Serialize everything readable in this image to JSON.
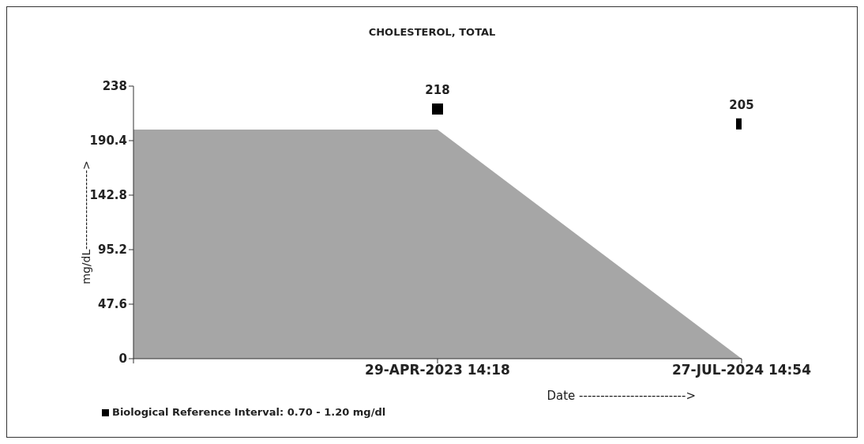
{
  "chart_data": {
    "type": "area",
    "title": "CHOLESTEROL, TOTAL",
    "xlabel": "Date ------------------------->",
    "ylabel": "mg/dL-------------------->",
    "categories": [
      null,
      "29-APR-2023 14:18",
      "27-JUL-2024 14:54"
    ],
    "series": [
      {
        "color": "#a6a6a6",
        "values": [
          200,
          200,
          0
        ]
      },
      {
        "type": "scatter",
        "name": "Biological Reference Interval: 0.70 - 1.20 mg/dl",
        "color": "#000000",
        "marker": "square",
        "values": [
          null,
          218,
          205
        ],
        "value_labels": [
          null,
          "218",
          "205"
        ]
      }
    ],
    "ylim": [
      0,
      238
    ],
    "yticks": [
      0,
      47.6,
      95.2,
      142.8,
      190.4,
      238
    ],
    "grid": false,
    "legend": "bottom left"
  }
}
